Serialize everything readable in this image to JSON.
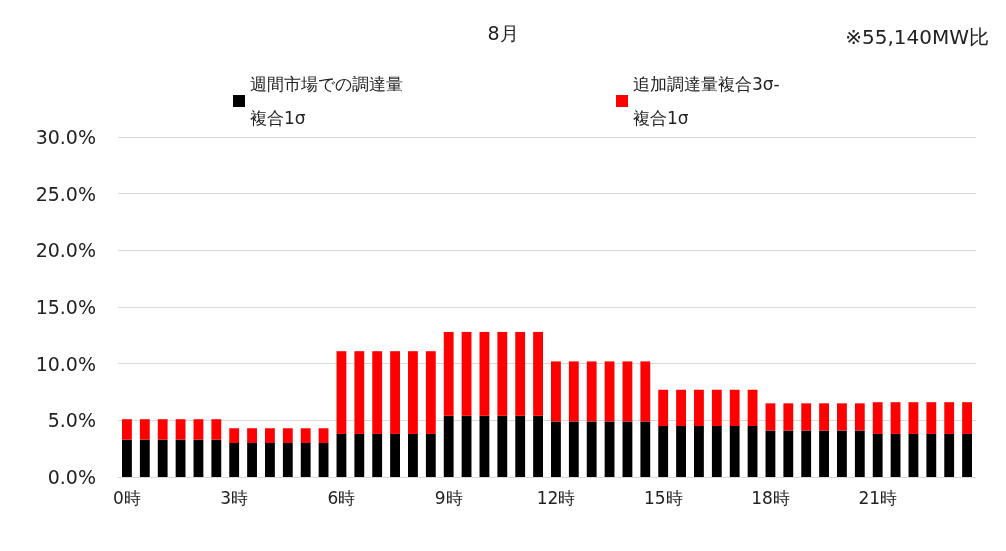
{
  "chart_data": {
    "type": "bar",
    "title": "8月",
    "annotations": [
      "※55,140MW比"
    ],
    "categories": [
      "0時",
      null,
      null,
      null,
      null,
      null,
      "3時",
      null,
      null,
      null,
      null,
      null,
      "6時",
      null,
      null,
      null,
      null,
      null,
      "9時",
      null,
      null,
      null,
      null,
      null,
      "12時",
      null,
      null,
      null,
      null,
      null,
      "15時",
      null,
      null,
      null,
      null,
      null,
      "18時",
      null,
      null,
      null,
      null,
      null,
      "21時",
      null,
      null,
      null,
      null,
      null
    ],
    "stacked": true,
    "series": [
      {
        "name": "週間市場での調達量複合1σ",
        "color": "#000000",
        "values": [
          3.3,
          3.3,
          3.3,
          3.3,
          3.3,
          3.3,
          3.0,
          3.0,
          3.0,
          3.0,
          3.0,
          3.0,
          3.8,
          3.8,
          3.8,
          3.8,
          3.8,
          3.8,
          5.4,
          5.4,
          5.4,
          5.4,
          5.4,
          5.4,
          4.9,
          4.9,
          4.9,
          4.9,
          4.9,
          4.9,
          4.5,
          4.5,
          4.5,
          4.5,
          4.5,
          4.5,
          4.1,
          4.1,
          4.1,
          4.1,
          4.1,
          4.1,
          3.8,
          3.8,
          3.8,
          3.8,
          3.8,
          3.8
        ]
      },
      {
        "name": "追加調達量複合3σ-複合1σ",
        "color": "#ff0000",
        "values": [
          1.8,
          1.8,
          1.8,
          1.8,
          1.8,
          1.8,
          1.3,
          1.3,
          1.3,
          1.3,
          1.3,
          1.3,
          7.3,
          7.3,
          7.3,
          7.3,
          7.3,
          7.3,
          7.4,
          7.4,
          7.4,
          7.4,
          7.4,
          7.4,
          5.3,
          5.3,
          5.3,
          5.3,
          5.3,
          5.3,
          3.2,
          3.2,
          3.2,
          3.2,
          3.2,
          3.2,
          2.4,
          2.4,
          2.4,
          2.4,
          2.4,
          2.4,
          2.8,
          2.8,
          2.8,
          2.8,
          2.8,
          2.8
        ]
      }
    ],
    "ylim": [
      0,
      30
    ],
    "yticks": [
      {
        "value": 0,
        "label": "0.0%"
      },
      {
        "value": 5,
        "label": "5.0%"
      },
      {
        "value": 10,
        "label": "10.0%"
      },
      {
        "value": 15,
        "label": "15.0%"
      },
      {
        "value": 20,
        "label": "20.0%"
      },
      {
        "value": 25,
        "label": "25.0%"
      },
      {
        "value": 30,
        "label": "30.0%"
      }
    ],
    "grid": "y",
    "legend": "top"
  }
}
